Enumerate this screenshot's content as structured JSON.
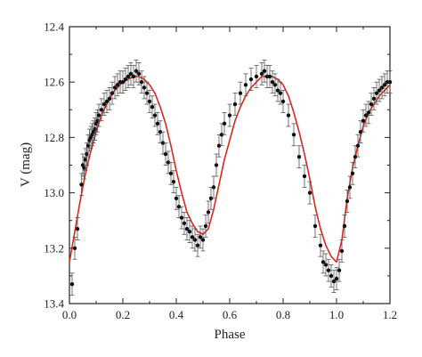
{
  "chart_data": {
    "type": "scatter",
    "title": "",
    "xlabel": "Phase",
    "ylabel": "V (mag)",
    "xlim": [
      0.0,
      1.2
    ],
    "ylim": [
      12.4,
      13.4
    ],
    "y_inverted": true,
    "grid": false,
    "x_ticks": [
      "0.0",
      "0.2",
      "0.4",
      "0.6",
      "0.8",
      "1.0",
      "1.2"
    ],
    "y_ticks": [
      "12.4",
      "12.6",
      "12.8",
      "13.0",
      "13.2",
      "13.4"
    ],
    "colors": {
      "points": "#111111",
      "fit": "#d62a1e",
      "axes": "#222222"
    },
    "series": [
      {
        "type": "scatter_errorbars",
        "x": [
          0.01,
          0.02,
          0.03,
          0.045,
          0.05,
          0.055,
          0.06,
          0.065,
          0.07,
          0.075,
          0.08,
          0.085,
          0.09,
          0.095,
          0.1,
          0.105,
          0.11,
          0.12,
          0.13,
          0.14,
          0.15,
          0.16,
          0.17,
          0.18,
          0.19,
          0.2,
          0.21,
          0.22,
          0.23,
          0.24,
          0.25,
          0.26,
          0.27,
          0.28,
          0.29,
          0.3,
          0.31,
          0.32,
          0.33,
          0.34,
          0.35,
          0.36,
          0.37,
          0.38,
          0.39,
          0.4,
          0.41,
          0.42,
          0.43,
          0.44,
          0.45,
          0.46,
          0.47,
          0.48,
          0.49,
          0.5,
          0.51,
          0.52,
          0.53,
          0.54,
          0.55,
          0.56,
          0.57,
          0.58,
          0.6,
          0.62,
          0.64,
          0.66,
          0.68,
          0.7,
          0.72,
          0.73,
          0.74,
          0.75,
          0.76,
          0.77,
          0.78,
          0.79,
          0.8,
          0.82,
          0.84,
          0.86,
          0.88,
          0.9,
          0.92,
          0.94,
          0.95,
          0.96,
          0.97,
          0.98,
          0.99,
          1.0,
          1.01,
          1.02,
          1.03,
          1.04,
          1.05,
          1.06,
          1.07,
          1.08,
          1.09,
          1.1,
          1.11,
          1.12,
          1.13,
          1.14,
          1.15,
          1.16,
          1.17,
          1.18,
          1.19,
          1.2
        ],
        "y": [
          13.33,
          13.2,
          13.13,
          12.97,
          12.9,
          12.91,
          12.88,
          12.86,
          12.83,
          12.81,
          12.8,
          12.79,
          12.78,
          12.77,
          12.75,
          12.74,
          12.72,
          12.7,
          12.68,
          12.67,
          12.66,
          12.64,
          12.62,
          12.61,
          12.6,
          12.6,
          12.59,
          12.58,
          12.57,
          12.58,
          12.56,
          12.57,
          12.6,
          12.62,
          12.64,
          12.67,
          12.69,
          12.72,
          12.75,
          12.78,
          12.82,
          12.86,
          12.89,
          12.93,
          12.96,
          13.02,
          13.05,
          13.09,
          13.11,
          13.13,
          13.14,
          13.16,
          13.17,
          13.19,
          13.16,
          13.17,
          13.12,
          13.07,
          13.02,
          12.98,
          12.9,
          12.83,
          12.79,
          12.75,
          12.72,
          12.68,
          12.64,
          12.61,
          12.59,
          12.58,
          12.57,
          12.56,
          12.58,
          12.58,
          12.6,
          12.61,
          12.63,
          12.64,
          12.67,
          12.72,
          12.79,
          12.87,
          12.94,
          13.0,
          13.12,
          13.19,
          13.25,
          13.26,
          13.28,
          13.3,
          13.32,
          13.31,
          13.28,
          13.21,
          13.12,
          13.03,
          12.98,
          12.93,
          12.87,
          12.83,
          12.78,
          12.74,
          12.72,
          12.71,
          12.68,
          12.66,
          12.64,
          12.63,
          12.62,
          12.61,
          12.6,
          12.6
        ],
        "error": 0.04
      },
      {
        "type": "fit_curve",
        "x": [
          0.0,
          0.02,
          0.04,
          0.06,
          0.08,
          0.1,
          0.12,
          0.14,
          0.16,
          0.18,
          0.2,
          0.22,
          0.24,
          0.26,
          0.28,
          0.3,
          0.32,
          0.34,
          0.36,
          0.38,
          0.4,
          0.42,
          0.44,
          0.46,
          0.48,
          0.5,
          0.52,
          0.54,
          0.56,
          0.58,
          0.6,
          0.62,
          0.64,
          0.66,
          0.68,
          0.7,
          0.72,
          0.74,
          0.76,
          0.78,
          0.8,
          0.82,
          0.84,
          0.86,
          0.88,
          0.9,
          0.92,
          0.94,
          0.96,
          0.98,
          1.0,
          1.02,
          1.04,
          1.06,
          1.08,
          1.1,
          1.12,
          1.14,
          1.16,
          1.18,
          1.2
        ],
        "y": [
          13.25,
          13.14,
          13.03,
          12.93,
          12.85,
          12.78,
          12.72,
          12.68,
          12.64,
          12.62,
          12.6,
          12.59,
          12.58,
          12.58,
          12.59,
          12.61,
          12.64,
          12.69,
          12.75,
          12.83,
          12.92,
          13.0,
          13.07,
          13.11,
          13.14,
          13.15,
          13.13,
          13.06,
          12.97,
          12.88,
          12.81,
          12.74,
          12.69,
          12.65,
          12.62,
          12.6,
          12.58,
          12.58,
          12.58,
          12.59,
          12.61,
          12.65,
          12.71,
          12.78,
          12.86,
          12.95,
          13.05,
          13.13,
          13.19,
          13.23,
          13.25,
          13.17,
          13.02,
          12.91,
          12.83,
          12.76,
          12.71,
          12.68,
          12.65,
          12.63,
          12.61
        ]
      }
    ]
  }
}
